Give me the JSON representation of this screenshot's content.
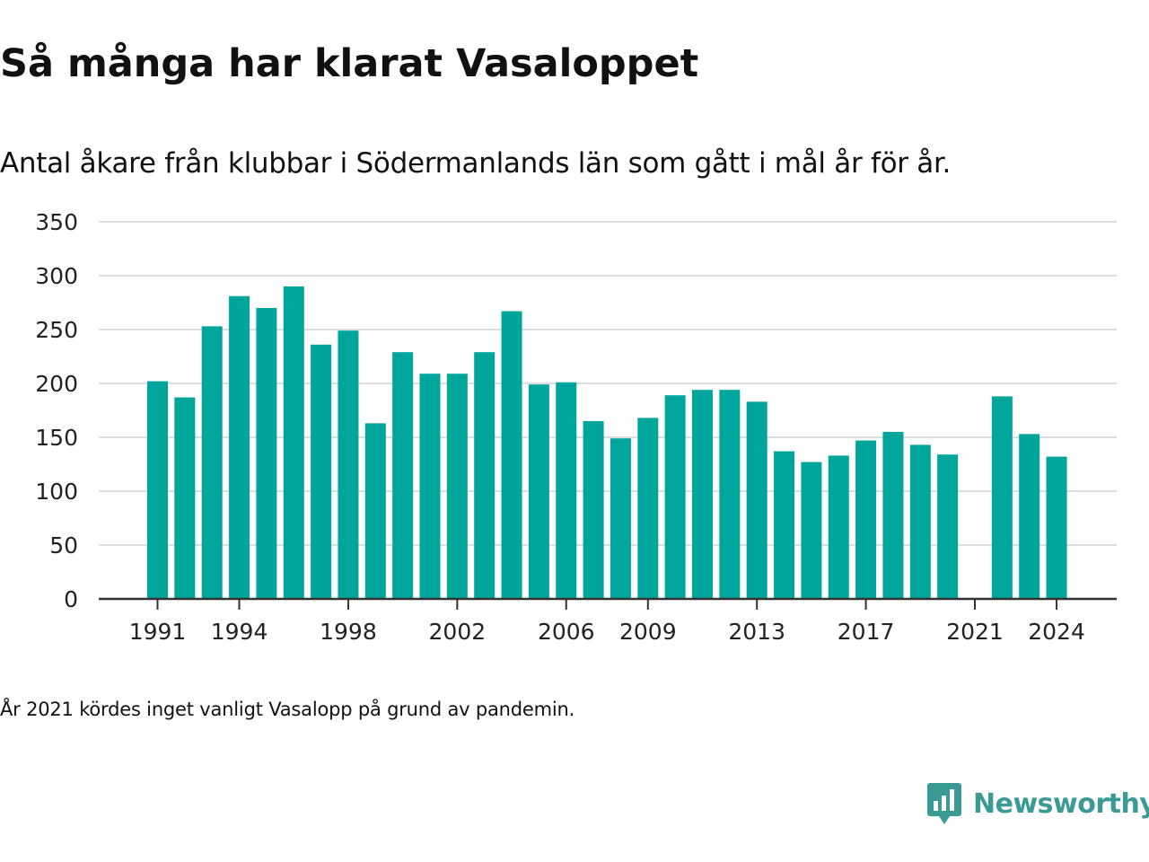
{
  "header": {
    "title": "Så många har klarat Vasaloppet",
    "subtitle": "Antal åkare från klubbar i Södermanlands län som gått i mål år för år."
  },
  "chart_data": {
    "type": "bar",
    "x": [
      1991,
      1992,
      1993,
      1994,
      1995,
      1996,
      1997,
      1998,
      1999,
      2000,
      2001,
      2002,
      2003,
      2004,
      2005,
      2006,
      2007,
      2008,
      2009,
      2010,
      2011,
      2012,
      2013,
      2014,
      2015,
      2016,
      2017,
      2018,
      2019,
      2020,
      2021,
      2022,
      2023,
      2024
    ],
    "values": [
      202,
      187,
      253,
      281,
      270,
      290,
      236,
      249,
      163,
      229,
      209,
      209,
      229,
      267,
      199,
      201,
      165,
      149,
      168,
      189,
      194,
      194,
      183,
      137,
      127,
      133,
      147,
      155,
      143,
      134,
      null,
      188,
      153,
      132
    ],
    "x_tick_labels": [
      "1991",
      "1994",
      "1998",
      "2002",
      "2006",
      "2009",
      "2013",
      "2017",
      "2021",
      "2024"
    ],
    "y_ticks": [
      0,
      50,
      100,
      150,
      200,
      250,
      300,
      350
    ],
    "ylim": [
      0,
      350
    ],
    "xlabel": "",
    "ylabel": "",
    "grid": true,
    "legend": "none",
    "bar_color": "#00a59b"
  },
  "footer": {
    "note": "År 2021 kördes inget vanligt Vasalopp på grund av pandemin.",
    "brand": "Newsworthy",
    "brand_color": "#3a9b95",
    "logo_icon": "newsworthy-logo-icon"
  }
}
